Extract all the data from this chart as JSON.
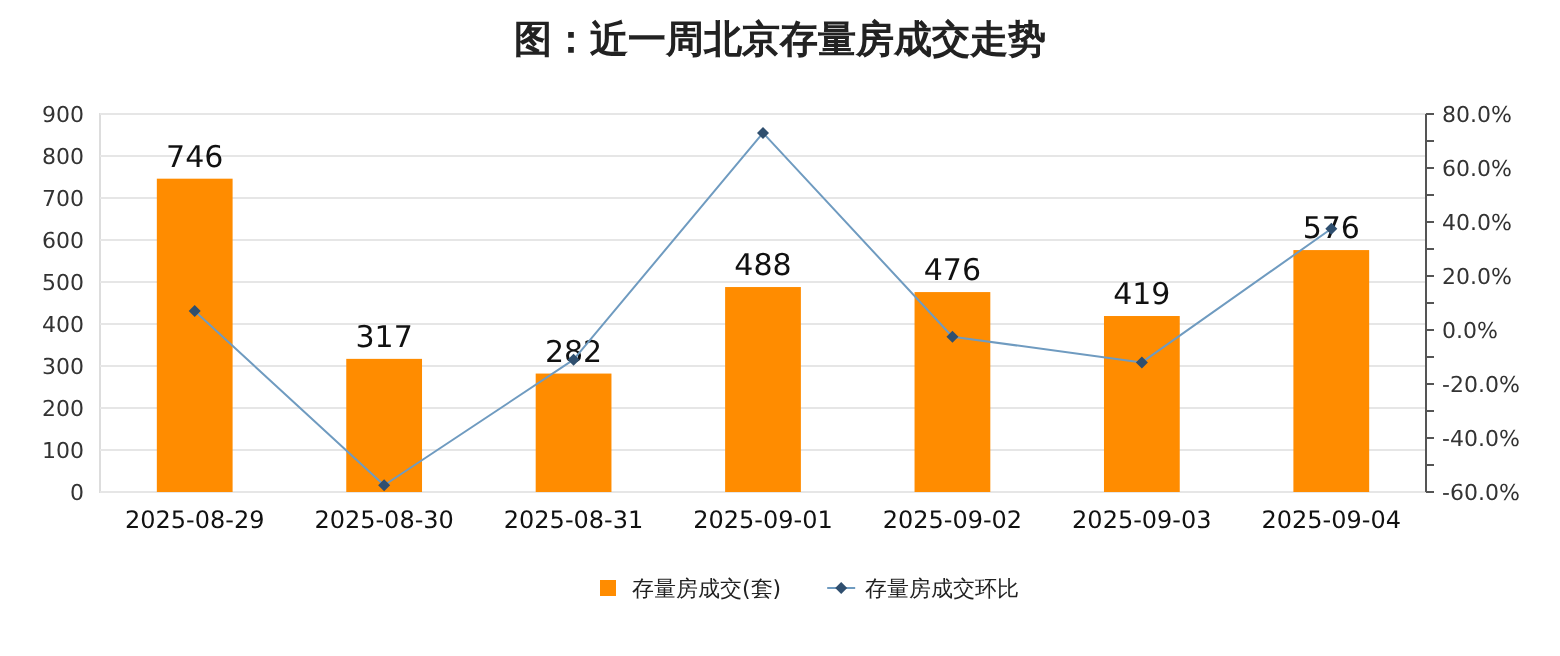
{
  "chart_data": {
    "type": "bar",
    "title": "图：近一周北京存量房成交走势",
    "categories": [
      "2025-08-29",
      "2025-08-30",
      "2025-08-31",
      "2025-09-01",
      "2025-09-02",
      "2025-09-03",
      "2025-09-04"
    ],
    "series": [
      {
        "name": "存量房成交(套)",
        "color": "#ff8c00",
        "values": [
          746,
          317,
          282,
          488,
          476,
          419,
          576
        ],
        "value_labels": [
          "746",
          "317",
          "282",
          "488",
          "476",
          "419",
          "576"
        ]
      },
      {
        "name": "存量房成交环比",
        "type": "line",
        "axis": "y2",
        "color": "#6f9bc0",
        "marker": "diamond",
        "values": [
          7,
          -57.5,
          -11,
          73,
          -2.5,
          -12,
          37.5
        ]
      }
    ],
    "ylim": [
      0,
      900
    ],
    "yticks": [
      0,
      100,
      200,
      300,
      400,
      500,
      600,
      700,
      800,
      900
    ],
    "y2lim": [
      -60,
      80
    ],
    "y2ticks": [
      {
        "value": -60,
        "label": "-60.0%"
      },
      {
        "value": -50,
        "label": null
      },
      {
        "value": -40,
        "label": "-40.0%"
      },
      {
        "value": -30,
        "label": null
      },
      {
        "value": -20,
        "label": "-20.0%"
      },
      {
        "value": -10,
        "label": null
      },
      {
        "value": 0,
        "label": "0.0%"
      },
      {
        "value": 10,
        "label": null
      },
      {
        "value": 20,
        "label": "20.0%"
      },
      {
        "value": 30,
        "label": null
      },
      {
        "value": 40,
        "label": "40.0%"
      },
      {
        "value": 50,
        "label": null
      },
      {
        "value": 60,
        "label": "60.0%"
      },
      {
        "value": 70,
        "label": null
      },
      {
        "value": 80,
        "label": "80.0%"
      }
    ],
    "grid": "y",
    "legend": "bottom"
  }
}
